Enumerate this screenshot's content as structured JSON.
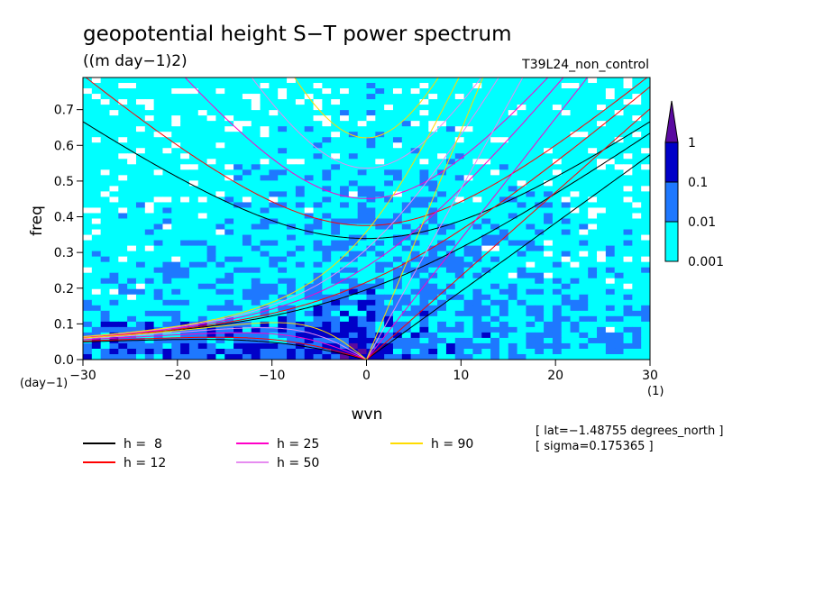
{
  "chart_data": {
    "type": "heatmap",
    "title": "geopotential height S−T power spectrum",
    "units": "((m day−1)2)",
    "run_label": "T39L24_non_control",
    "xlabel": "wvn",
    "ylabel": "freq",
    "x_unit_label": "(1)",
    "y_unit_label": "(day−1)",
    "xlim": [
      -30,
      30
    ],
    "ylim": [
      0,
      0.79
    ],
    "x_ticks": [
      -30,
      -20,
      -10,
      0,
      10,
      20,
      30
    ],
    "x_tick_labels": [
      "−30",
      "−20",
      "−10",
      "0",
      "10",
      "20",
      "30"
    ],
    "y_ticks": [
      0,
      0.1,
      0.2,
      0.3,
      0.4,
      0.5,
      0.6,
      0.7
    ],
    "y_tick_labels": [
      "0.0",
      "0.1",
      "0.2",
      "0.3",
      "0.4",
      "0.5",
      "0.6",
      "0.7"
    ],
    "colorbar": {
      "levels": [
        0.001,
        0.01,
        0.1,
        1
      ],
      "labels": [
        "0.001",
        "0.01",
        "0.1",
        "1"
      ],
      "colors": [
        "#00ffff",
        "#1e78ff",
        "#0000c8",
        "#5a0aa0"
      ],
      "background": "#ffffff"
    },
    "dispersion_curves": [
      {
        "name": "h =  8",
        "h": 8,
        "color": "#000000"
      },
      {
        "name": "h = 12",
        "h": 12,
        "color": "#ff0000"
      },
      {
        "name": "h = 25",
        "h": 25,
        "color": "#ff00c8"
      },
      {
        "name": "h = 50",
        "h": 50,
        "color": "#e68cf0"
      },
      {
        "name": "h = 90",
        "h": 90,
        "color": "#ffdc00"
      }
    ],
    "annotations": [
      "[ lat=−1.48755 degrees_north ]",
      "[ sigma=0.175365 ]"
    ]
  }
}
